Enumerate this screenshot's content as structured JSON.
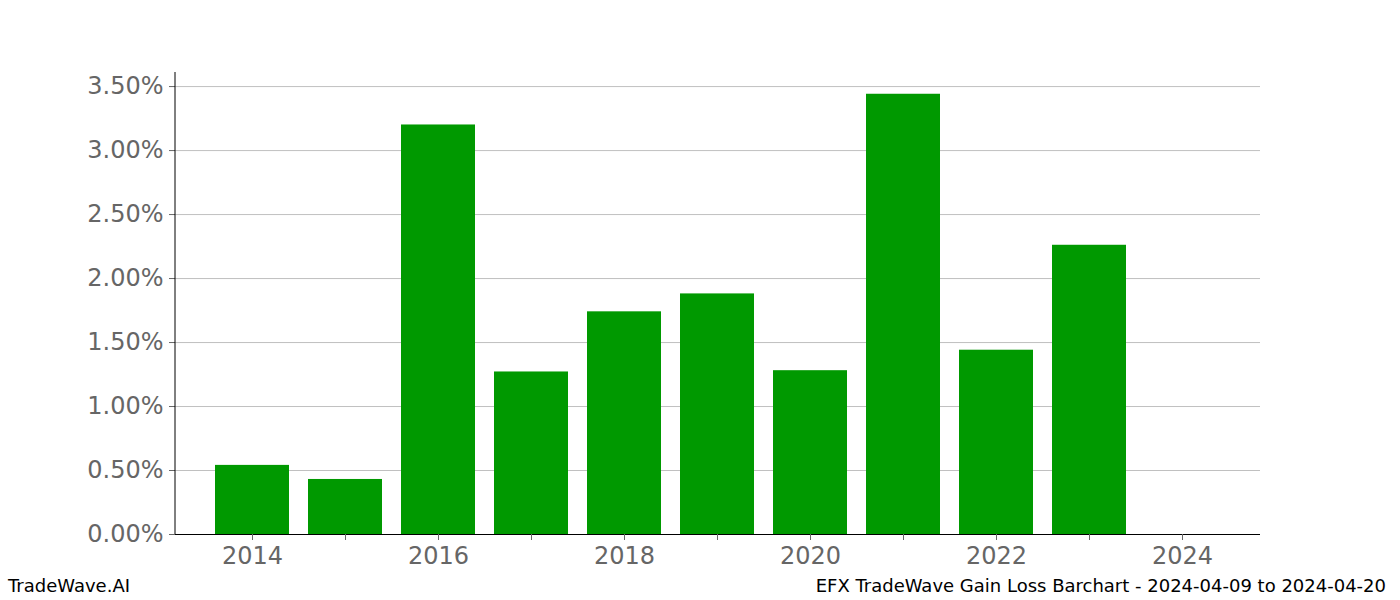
{
  "chart_data": {
    "type": "bar",
    "title": "EFX TradeWave Gain Loss Barchart - 2024-04-09 to 2024-04-20",
    "caption": "TradeWave.AI",
    "categories": [
      "2014",
      null,
      "2016",
      null,
      "2018",
      null,
      "2020",
      null,
      "2022",
      null,
      "2024"
    ],
    "values": [
      0.54,
      0.43,
      3.2,
      1.27,
      1.74,
      1.88,
      1.28,
      3.44,
      1.44,
      2.26,
      0
    ],
    "color": "#009900",
    "ylim": [
      0,
      3.61
    ],
    "yticks": [
      {
        "value": 0,
        "label": "0.00%"
      },
      {
        "value": 0.5,
        "label": "0.50%"
      },
      {
        "value": 1,
        "label": "1.00%"
      },
      {
        "value": 1.5,
        "label": "1.50%"
      },
      {
        "value": 2,
        "label": "2.00%"
      },
      {
        "value": 2.5,
        "label": "2.50%"
      },
      {
        "value": 3,
        "label": "3.00%"
      },
      {
        "value": 3.5,
        "label": "3.50%"
      }
    ],
    "grid": true
  }
}
